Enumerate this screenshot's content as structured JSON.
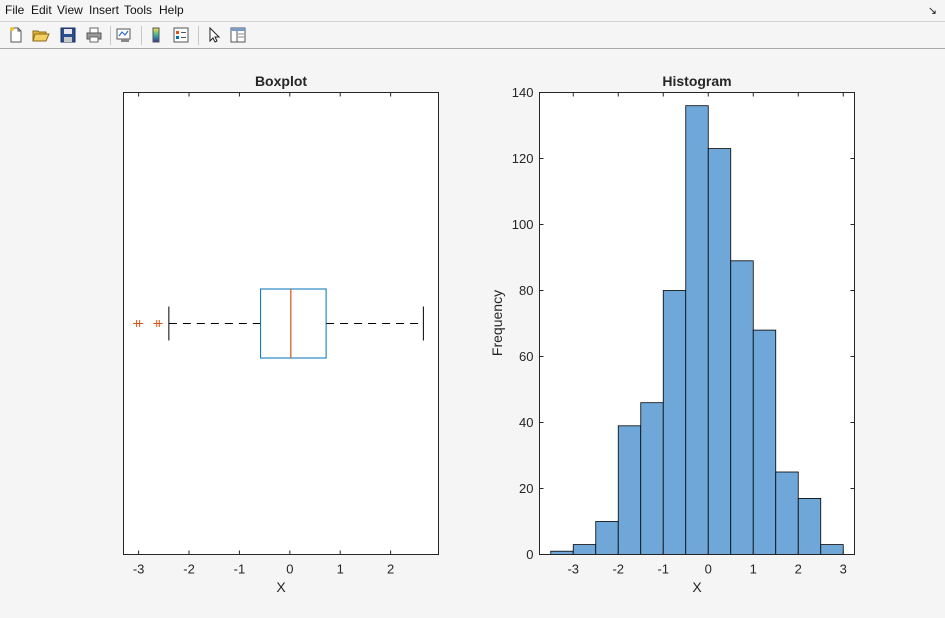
{
  "menu": {
    "items": [
      "File",
      "Edit",
      "View",
      "Insert",
      "Tools",
      "Help"
    ],
    "dock_glyph": "↘"
  },
  "toolbar": {
    "icons": [
      "new-figure-icon",
      "open-file-icon",
      "save-icon",
      "print-icon",
      "link-plot-icon",
      "colorbar-icon",
      "legend-icon",
      "pointer-icon",
      "property-inspector-icon"
    ]
  },
  "colors": {
    "box": "#0072bd",
    "median": "#d95319",
    "outlier": "#d95319",
    "hist_fill": "#6fa8d8",
    "axes_text": "#262626"
  },
  "chart_data": [
    {
      "type": "boxplot",
      "title": "Boxplot",
      "xlabel": "X",
      "ylabel": "",
      "xlim": [
        -3.3,
        2.95
      ],
      "xticks": [
        -3,
        -2,
        -1,
        0,
        1,
        2
      ],
      "xtick_labels": [
        "-3",
        "-2",
        "-1",
        "0",
        "1",
        "2"
      ],
      "orientation": "horizontal",
      "stats": {
        "lower_whisker": -2.4,
        "q1": -0.58,
        "median": 0.02,
        "q3": 0.72,
        "upper_whisker": 2.65
      },
      "outliers": [
        -3.04,
        -2.98,
        -2.64,
        -2.59
      ]
    },
    {
      "type": "bar",
      "subtype": "histogram",
      "title": "Histogram",
      "xlabel": "X",
      "ylabel": "Frequency",
      "xlim": [
        -3.75,
        3.25
      ],
      "ylim": [
        0,
        140
      ],
      "xticks": [
        -3,
        -2,
        -1,
        0,
        1,
        2,
        3
      ],
      "xtick_labels": [
        "-3",
        "-2",
        "-1",
        "0",
        "1",
        "2",
        "3"
      ],
      "yticks": [
        0,
        20,
        40,
        60,
        80,
        100,
        120,
        140
      ],
      "ytick_labels": [
        "0",
        "20",
        "40",
        "60",
        "80",
        "100",
        "120",
        "140"
      ],
      "bin_edges": [
        -3.5,
        -3.0,
        -2.5,
        -2.0,
        -1.5,
        -1.0,
        -0.5,
        0.0,
        0.5,
        1.0,
        1.5,
        2.0,
        2.5,
        3.0
      ],
      "values": [
        1,
        3,
        10,
        39,
        46,
        80,
        136,
        123,
        89,
        68,
        25,
        17,
        3
      ]
    }
  ]
}
